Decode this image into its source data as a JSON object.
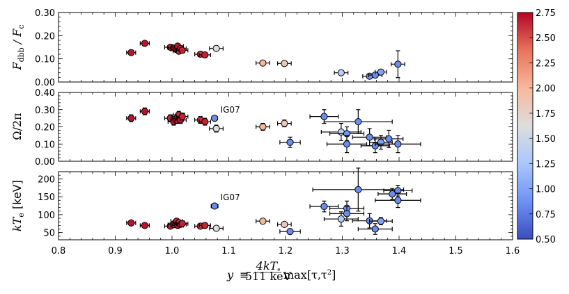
{
  "chart_data": {
    "type": "scatter",
    "x": {
      "label": "y ≡ (4kT_e / 511 keV) max[τ,τ²]",
      "label_display": {
        "var": "y",
        "eq": "≡",
        "num": "4kT",
        "num_sub": "e",
        "den": "511 keV",
        "tail": "max[τ,τ",
        "tail_sup": "2",
        "tail_end": "]"
      },
      "lim": [
        0.8,
        1.6
      ],
      "ticks": [
        "0.8",
        "0.9",
        "1.0",
        "1.1",
        "1.2",
        "1.3",
        "1.4",
        "1.5",
        "1.6"
      ]
    },
    "colorbar": {
      "lim": [
        0.5,
        2.75
      ],
      "ticks": [
        "0.50",
        "0.75",
        "1.00",
        "1.25",
        "1.50",
        "1.75",
        "2.00",
        "2.25",
        "2.50",
        "2.75"
      ],
      "colormap": [
        "#3b4cc0",
        "#6f92f3",
        "#aac7fd",
        "#dddddd",
        "#f7b89c",
        "#e7745b",
        "#b40426"
      ]
    },
    "panels": [
      {
        "name": "f-dbb-panel",
        "ylabel": "F_dbb / F_c",
        "ylabel_display": {
          "a": "F",
          "a_sub": "dbb",
          "b": " / F",
          "b_sub": "c"
        },
        "ylim": [
          0,
          0.3
        ],
        "yticks": [
          "0.00",
          "0.10",
          "0.20",
          "0.30"
        ],
        "points": [
          {
            "x": 0.928,
            "y": 0.127,
            "xerr": 0.008,
            "yerr": 0,
            "c": 2.7
          },
          {
            "x": 0.952,
            "y": 0.167,
            "xerr": 0.008,
            "yerr": 0,
            "c": 2.7
          },
          {
            "x": 0.997,
            "y": 0.15,
            "xerr": 0.01,
            "yerr": 0,
            "c": 2.65
          },
          {
            "x": 1.003,
            "y": 0.147,
            "xerr": 0.01,
            "yerr": 0,
            "c": 2.7
          },
          {
            "x": 1.008,
            "y": 0.14,
            "xerr": 0.01,
            "yerr": 0,
            "c": 2.65
          },
          {
            "x": 1.01,
            "y": 0.155,
            "xerr": 0.01,
            "yerr": 0,
            "c": 2.7
          },
          {
            "x": 1.012,
            "y": 0.133,
            "xerr": 0.01,
            "yerr": 0,
            "c": 2.6
          },
          {
            "x": 1.015,
            "y": 0.145,
            "xerr": 0.01,
            "yerr": 0,
            "c": 2.7
          },
          {
            "x": 1.018,
            "y": 0.137,
            "xerr": 0.01,
            "yerr": 0,
            "c": 2.65
          },
          {
            "x": 1.05,
            "y": 0.12,
            "xerr": 0.01,
            "yerr": 0,
            "c": 2.6
          },
          {
            "x": 1.058,
            "y": 0.117,
            "xerr": 0.01,
            "yerr": 0,
            "c": 2.65
          },
          {
            "x": 1.078,
            "y": 0.145,
            "xerr": 0.012,
            "yerr": 0,
            "c": 1.6
          },
          {
            "x": 1.16,
            "y": 0.082,
            "xerr": 0.012,
            "yerr": 0,
            "c": 2.0
          },
          {
            "x": 1.198,
            "y": 0.08,
            "xerr": 0.012,
            "yerr": 0,
            "c": 1.85
          },
          {
            "x": 1.298,
            "y": 0.04,
            "xerr": 0.012,
            "yerr": 0,
            "c": 1.35
          },
          {
            "x": 1.348,
            "y": 0.025,
            "xerr": 0.012,
            "yerr": 0,
            "c": 0.85
          },
          {
            "x": 1.358,
            "y": 0.03,
            "xerr": 0.012,
            "yerr": 0,
            "c": 0.85
          },
          {
            "x": 1.368,
            "y": 0.043,
            "xerr": 0.01,
            "yerr": 0,
            "c": 1.0
          },
          {
            "x": 1.398,
            "y": 0.077,
            "xerr": 0.012,
            "yerr": 0.058,
            "c": 0.85
          }
        ]
      },
      {
        "name": "omega-panel",
        "ylabel": "Ω/2π",
        "ylim": [
          0,
          0.4
        ],
        "yticks": [
          "0.00",
          "0.10",
          "0.20",
          "0.30",
          "0.40"
        ],
        "annotation": {
          "text": "IG07",
          "x": 1.078,
          "y": 0.3
        },
        "points": [
          {
            "x": 0.928,
            "y": 0.25,
            "xerr": 0.008,
            "yerr": 0.02,
            "c": 2.7
          },
          {
            "x": 0.952,
            "y": 0.29,
            "xerr": 0.008,
            "yerr": 0.02,
            "c": 2.7
          },
          {
            "x": 0.997,
            "y": 0.25,
            "xerr": 0.01,
            "yerr": 0.02,
            "c": 2.65
          },
          {
            "x": 1.003,
            "y": 0.23,
            "xerr": 0.01,
            "yerr": 0.02,
            "c": 2.7
          },
          {
            "x": 1.008,
            "y": 0.24,
            "xerr": 0.01,
            "yerr": 0.02,
            "c": 2.65
          },
          {
            "x": 1.01,
            "y": 0.26,
            "xerr": 0.01,
            "yerr": 0.02,
            "c": 2.7
          },
          {
            "x": 1.012,
            "y": 0.27,
            "xerr": 0.01,
            "yerr": 0.02,
            "c": 2.6
          },
          {
            "x": 1.015,
            "y": 0.24,
            "xerr": 0.01,
            "yerr": 0.02,
            "c": 2.7
          },
          {
            "x": 1.018,
            "y": 0.26,
            "xerr": 0.01,
            "yerr": 0.02,
            "c": 2.65
          },
          {
            "x": 1.05,
            "y": 0.24,
            "xerr": 0.01,
            "yerr": 0.02,
            "c": 2.6
          },
          {
            "x": 1.058,
            "y": 0.23,
            "xerr": 0.01,
            "yerr": 0.02,
            "c": 2.65
          },
          {
            "x": 1.075,
            "y": 0.25,
            "xerr": 0.005,
            "yerr": 0,
            "c": 0.85
          },
          {
            "x": 1.078,
            "y": 0.19,
            "xerr": 0.012,
            "yerr": 0.02,
            "c": 1.6
          },
          {
            "x": 1.16,
            "y": 0.2,
            "xerr": 0.012,
            "yerr": 0.02,
            "c": 2.0
          },
          {
            "x": 1.198,
            "y": 0.22,
            "xerr": 0.012,
            "yerr": 0.02,
            "c": 1.85
          },
          {
            "x": 1.208,
            "y": 0.11,
            "xerr": 0.018,
            "yerr": 0.03,
            "c": 0.85
          },
          {
            "x": 1.268,
            "y": 0.26,
            "xerr": 0.025,
            "yerr": 0.04,
            "c": 0.85
          },
          {
            "x": 1.298,
            "y": 0.17,
            "xerr": 0.035,
            "yerr": 0.05,
            "c": 1.35
          },
          {
            "x": 1.308,
            "y": 0.16,
            "xerr": 0.03,
            "yerr": 0.04,
            "c": 0.9
          },
          {
            "x": 1.308,
            "y": 0.1,
            "xerr": 0.035,
            "yerr": 0.05,
            "c": 0.85
          },
          {
            "x": 1.328,
            "y": 0.23,
            "xerr": 0.06,
            "yerr": 0.07,
            "c": 0.85
          },
          {
            "x": 1.348,
            "y": 0.14,
            "xerr": 0.03,
            "yerr": 0.05,
            "c": 0.85
          },
          {
            "x": 1.358,
            "y": 0.09,
            "xerr": 0.025,
            "yerr": 0.04,
            "c": 0.85
          },
          {
            "x": 1.368,
            "y": 0.11,
            "xerr": 0.02,
            "yerr": 0.04,
            "c": 1.0
          },
          {
            "x": 1.382,
            "y": 0.13,
            "xerr": 0.025,
            "yerr": 0.05,
            "c": 0.85
          },
          {
            "x": 1.398,
            "y": 0.1,
            "xerr": 0.04,
            "yerr": 0.05,
            "c": 0.85
          }
        ]
      },
      {
        "name": "kte-panel",
        "ylabel": "kT_e [keV]",
        "ylabel_display": {
          "a": "kT",
          "a_sub": "e",
          "b": " [keV]"
        },
        "ylim": [
          30,
          220
        ],
        "yticks": [
          "50",
          "100",
          "150",
          "200"
        ],
        "annotation": {
          "text": "IG07",
          "x": 1.078,
          "y": 148
        },
        "points": [
          {
            "x": 0.928,
            "y": 77,
            "xerr": 0.008,
            "yerr": 0,
            "c": 2.7
          },
          {
            "x": 0.952,
            "y": 70,
            "xerr": 0.008,
            "yerr": 0,
            "c": 2.7
          },
          {
            "x": 0.997,
            "y": 68,
            "xerr": 0.01,
            "yerr": 0,
            "c": 2.65
          },
          {
            "x": 1.003,
            "y": 72,
            "xerr": 0.01,
            "yerr": 0,
            "c": 2.7
          },
          {
            "x": 1.008,
            "y": 82,
            "xerr": 0.01,
            "yerr": 0,
            "c": 2.65
          },
          {
            "x": 1.01,
            "y": 70,
            "xerr": 0.01,
            "yerr": 0,
            "c": 2.7
          },
          {
            "x": 1.012,
            "y": 78,
            "xerr": 0.01,
            "yerr": 0,
            "c": 2.6
          },
          {
            "x": 1.015,
            "y": 73,
            "xerr": 0.01,
            "yerr": 0,
            "c": 2.7
          },
          {
            "x": 1.018,
            "y": 75,
            "xerr": 0.01,
            "yerr": 0,
            "c": 2.65
          },
          {
            "x": 1.05,
            "y": 68,
            "xerr": 0.01,
            "yerr": 0,
            "c": 2.6
          },
          {
            "x": 1.058,
            "y": 70,
            "xerr": 0.01,
            "yerr": 0,
            "c": 2.65
          },
          {
            "x": 1.075,
            "y": 124,
            "xerr": 0.006,
            "yerr": 0,
            "c": 0.85
          },
          {
            "x": 1.078,
            "y": 62,
            "xerr": 0.012,
            "yerr": 0,
            "c": 1.6
          },
          {
            "x": 1.16,
            "y": 82,
            "xerr": 0.012,
            "yerr": 0,
            "c": 2.0
          },
          {
            "x": 1.198,
            "y": 73,
            "xerr": 0.012,
            "yerr": 0,
            "c": 1.85
          },
          {
            "x": 1.208,
            "y": 53,
            "xerr": 0.018,
            "yerr": 0,
            "c": 0.85
          },
          {
            "x": 1.268,
            "y": 123,
            "xerr": 0.025,
            "yerr": 15,
            "c": 0.85
          },
          {
            "x": 1.298,
            "y": 88,
            "xerr": 0.03,
            "yerr": 20,
            "c": 1.35
          },
          {
            "x": 1.308,
            "y": 118,
            "xerr": 0.03,
            "yerr": 20,
            "c": 0.9
          },
          {
            "x": 1.308,
            "y": 103,
            "xerr": 0.03,
            "yerr": 20,
            "c": 0.85
          },
          {
            "x": 1.328,
            "y": 170,
            "xerr": 0.08,
            "yerr": 60,
            "c": 0.85
          },
          {
            "x": 1.348,
            "y": 83,
            "xerr": 0.03,
            "yerr": 20,
            "c": 0.85
          },
          {
            "x": 1.358,
            "y": 60,
            "xerr": 0.03,
            "yerr": 15,
            "c": 0.85
          },
          {
            "x": 1.368,
            "y": 82,
            "xerr": 0.02,
            "yerr": 10,
            "c": 1.0
          },
          {
            "x": 1.388,
            "y": 158,
            "xerr": 0.025,
            "yerr": 15,
            "c": 0.85
          },
          {
            "x": 1.398,
            "y": 167,
            "xerr": 0.025,
            "yerr": 15,
            "c": 0.85
          },
          {
            "x": 1.398,
            "y": 140,
            "xerr": 0.04,
            "yerr": 20,
            "c": 0.85
          }
        ]
      }
    ]
  }
}
